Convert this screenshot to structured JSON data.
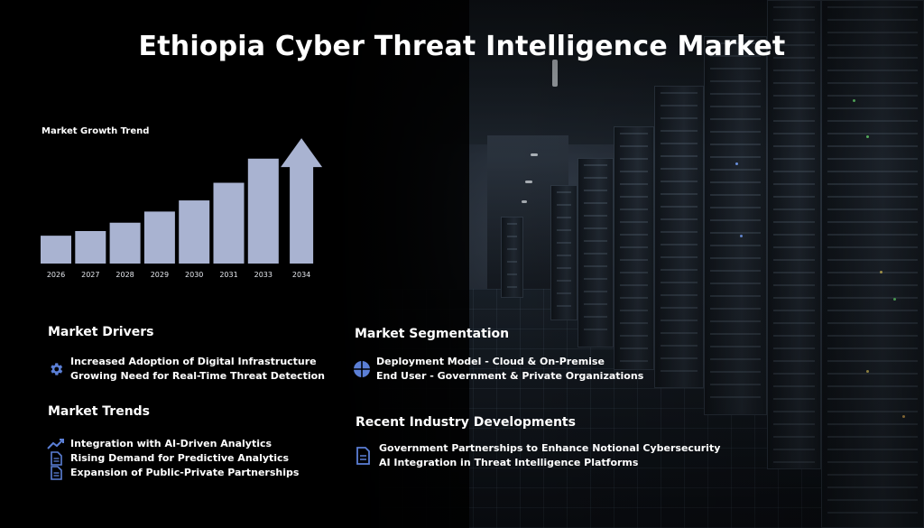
{
  "title": "Ethiopia Cyber Threat Intelligence Market",
  "colors": {
    "bar": "#a9b3d1",
    "icon": "#5b7fd6",
    "text": "#ffffff"
  },
  "chart_data": {
    "type": "bar",
    "title": "Market Growth Trend",
    "categories": [
      "2026",
      "2027",
      "2028",
      "2029",
      "2030",
      "2031",
      "2033",
      "2034"
    ],
    "values": [
      3.0,
      3.5,
      4.4,
      5.6,
      6.8,
      8.7,
      11.3,
      13.5
    ],
    "xlabel": "",
    "ylabel": "",
    "ylim": [
      0,
      14
    ],
    "grid": false,
    "legend": "none",
    "last_bar_arrow": true
  },
  "sections": {
    "drivers": {
      "heading": "Market Drivers",
      "icon": "gear-icon",
      "lines": [
        "Increased Adoption of Digital Infrastructure",
        "Growing Need for Real-Time Threat Detection"
      ]
    },
    "trends": {
      "heading": "Market Trends",
      "items": [
        {
          "icon": "trend-chart-icon",
          "text": "Integration with AI-Driven Analytics"
        },
        {
          "icon": "document-icon",
          "text": "Rising Demand for Predictive Analytics"
        },
        {
          "icon": "document-icon",
          "text": "Expansion of Public-Private Partnerships"
        }
      ]
    },
    "segmentation": {
      "heading": "Market Segmentation",
      "icon": "pie-segment-icon",
      "lines": [
        "Deployment Model - Cloud & On-Premise",
        "End User - Government & Private Organizations"
      ]
    },
    "developments": {
      "heading": "Recent Industry Developments",
      "icon": "document-icon",
      "lines": [
        "Government Partnerships to Enhance Notional Cybersecurity",
        "AI Integration in Threat Intelligence Platforms"
      ]
    }
  }
}
